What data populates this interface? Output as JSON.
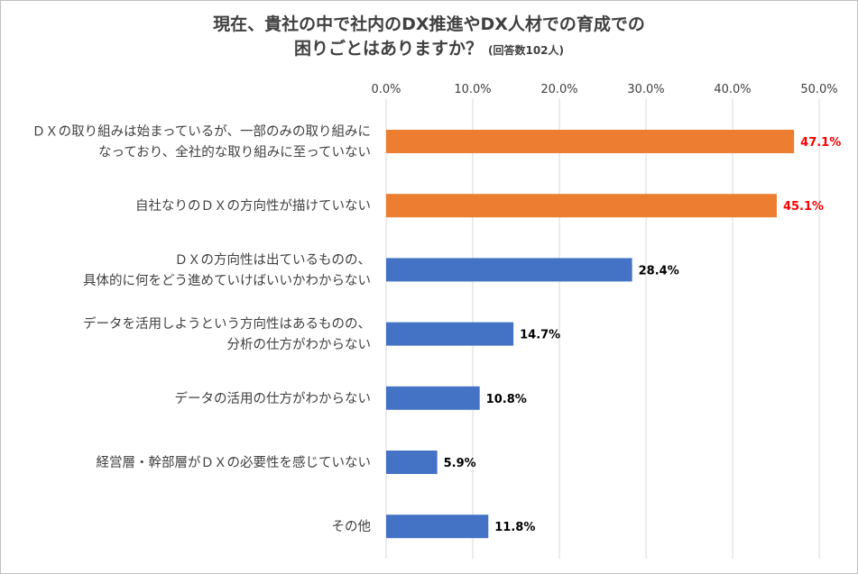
{
  "chart_data": {
    "type": "bar",
    "orientation": "horizontal",
    "title": "現在、貴社の中で社内のDX推進やDX人材での育成での",
    "title_line2": "困りごとはありますか？",
    "title_note": "(回答数102人)",
    "xlim": [
      0,
      50
    ],
    "ticks": [
      "0.0%",
      "10.0%",
      "20.0%",
      "30.0%",
      "40.0%",
      "50.0%"
    ],
    "tick_values": [
      0,
      10,
      20,
      30,
      40,
      50
    ],
    "grid": true,
    "legend": "none",
    "categories": [
      [
        "ＤＸの取り組みは始まっているが、一部のみの取り組みに",
        "なっており、全社的な取り組みに至っていない"
      ],
      [
        "自社なりのＤＸの方向性が描けていない"
      ],
      [
        "ＤＸの方向性は出ているものの、",
        "具体的に何をどう進めていけばいいかわからない"
      ],
      [
        "データを活用しようという方向性はあるものの、",
        "分析の仕方がわからない"
      ],
      [
        "データの活用の仕方がわからない"
      ],
      [
        "経営層・幹部層がＤＸの必要性を感じていない"
      ],
      [
        "その他"
      ]
    ],
    "values": [
      47.1,
      45.1,
      28.4,
      14.7,
      10.8,
      5.9,
      11.8
    ],
    "value_labels": [
      "47.1%",
      "45.1%",
      "28.4%",
      "14.7%",
      "10.8%",
      "5.9%",
      "11.8%"
    ],
    "highlighted": [
      true,
      true,
      false,
      false,
      false,
      false,
      false
    ],
    "colors": {
      "highlight_bar": "#ED7D31",
      "normal_bar": "#4472C4",
      "highlight_label": "#FF0000",
      "normal_label": "#000000",
      "grid": "#D9D9D9",
      "text": "#404040"
    }
  }
}
